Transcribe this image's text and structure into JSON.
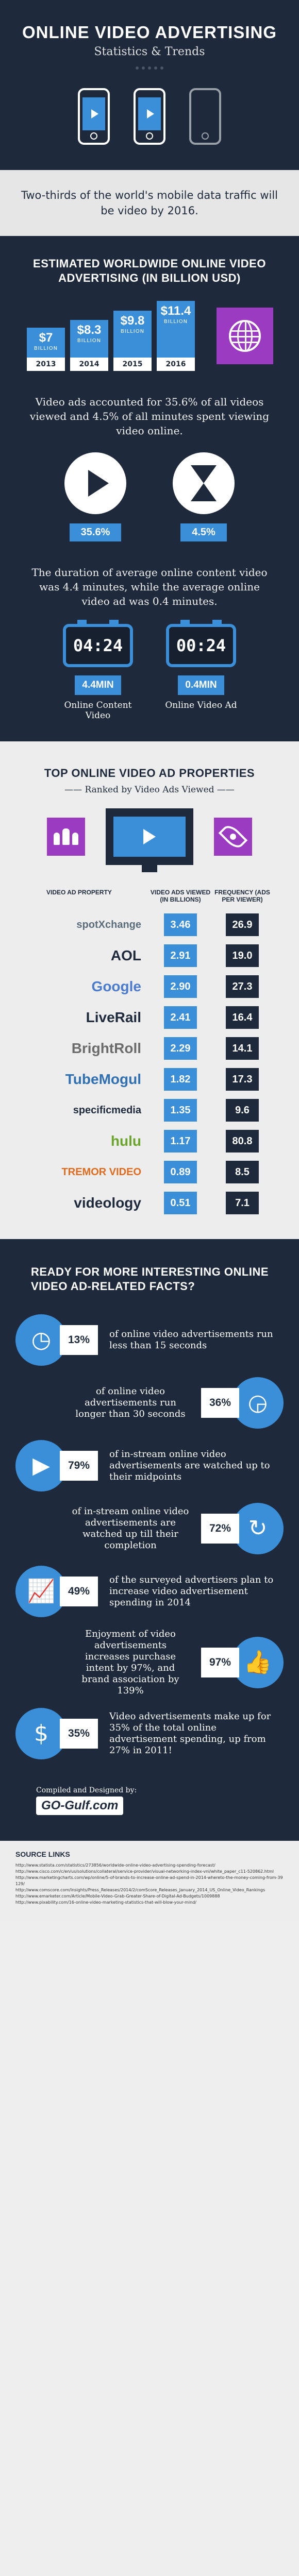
{
  "header": {
    "title": "ONLINE VIDEO ADVERTISING",
    "subtitle": "Statistics & Trends"
  },
  "intro": "Two-thirds of the world's mobile data traffic will be video by 2016.",
  "spending": {
    "heading": "ESTIMATED WORLDWIDE ONLINE VIDEO ADVERTISING (IN BILLION USD)",
    "unit": "BILLION",
    "bars": [
      {
        "value": "$7",
        "numeric": 7,
        "year": "2013"
      },
      {
        "value": "$8.3",
        "numeric": 8.3,
        "year": "2014"
      },
      {
        "value": "$9.8",
        "numeric": 9.8,
        "year": "2015"
      },
      {
        "value": "$11.4",
        "numeric": 11.4,
        "year": "2016"
      }
    ],
    "colors": {
      "bar": "#3b8fd9",
      "globe_box": "#9b3bc2"
    }
  },
  "share": {
    "text": "Video ads accounted for 35.6% of all videos viewed and 4.5% of all minutes spent viewing video online.",
    "left_pct": "35.6%",
    "right_pct": "4.5%",
    "left_icon": "play-icon",
    "right_icon": "hourglass-icon"
  },
  "duration": {
    "text": "The duration of average online content video was 4.4 minutes, while the average online video ad was 0.4 minutes.",
    "items": [
      {
        "clock": "04:24",
        "value": "4.4MIN",
        "label": "Online Content Video"
      },
      {
        "clock": "00:24",
        "value": "0.4MIN",
        "label": "Online Video Ad"
      }
    ]
  },
  "properties": {
    "heading": "TOP ONLINE VIDEO AD PROPERTIES",
    "subheading": "Ranked by Video Ads Viewed",
    "columns": [
      "VIDEO AD PROPERTY",
      "VIDEO ADS VIEWED (IN BILLIONS)",
      "FREQUENCY (ADS PER VIEWER)"
    ],
    "rows": [
      {
        "name": "spotXchange",
        "color": "#5a6b7a",
        "viewed": "3.46",
        "frequency": "26.9"
      },
      {
        "name": "AOL",
        "color": "#1e2a3b",
        "viewed": "2.91",
        "frequency": "19.0"
      },
      {
        "name": "Google",
        "color": "#4a7bd1",
        "viewed": "2.90",
        "frequency": "27.3"
      },
      {
        "name": "LiveRail",
        "color": "#1e2a3b",
        "viewed": "2.41",
        "frequency": "16.4"
      },
      {
        "name": "BrightRoll",
        "color": "#6b6b6b",
        "viewed": "2.29",
        "frequency": "14.1"
      },
      {
        "name": "TubeMogul",
        "color": "#2f6fb3",
        "viewed": "1.82",
        "frequency": "17.3"
      },
      {
        "name": "specificmedia",
        "color": "#1e2a3b",
        "viewed": "1.35",
        "frequency": "9.6"
      },
      {
        "name": "hulu",
        "color": "#6aa52b",
        "viewed": "1.17",
        "frequency": "80.8"
      },
      {
        "name": "TREMOR VIDEO",
        "color": "#e36a1b",
        "viewed": "0.89",
        "frequency": "8.5"
      },
      {
        "name": "videology",
        "color": "#1e2a3b",
        "viewed": "0.51",
        "frequency": "7.1"
      }
    ]
  },
  "facts": {
    "heading": "READY FOR MORE INTERESTING ONLINE VIDEO AD-RELATED FACTS?",
    "items": [
      {
        "side": "l",
        "icon": "clock-icon",
        "glyph": "◷",
        "pct": "13%",
        "text": "of online video advertisements run less than 15 seconds"
      },
      {
        "side": "r",
        "icon": "clock-icon",
        "glyph": "◶",
        "pct": "36%",
        "text": "of online video advertisements run longer than 30 seconds"
      },
      {
        "side": "l",
        "icon": "play-icon",
        "glyph": "▶",
        "pct": "79%",
        "text": "of in-stream online video advertisements are watched up to their midpoints"
      },
      {
        "side": "r",
        "icon": "refresh-icon",
        "glyph": "↻",
        "pct": "72%",
        "text": "of in-stream online video advertisements are watched up till their completion"
      },
      {
        "side": "l",
        "icon": "growth-chart-icon",
        "glyph": "📈",
        "pct": "49%",
        "text": "of the surveyed advertisers plan to increase video advertisement spending in 2014"
      },
      {
        "side": "r",
        "icon": "thumbs-up-icon",
        "glyph": "👍",
        "pct": "97%",
        "text": "Enjoyment of video advertisements increases purchase intent by 97%, and brand association by 139%"
      },
      {
        "side": "l",
        "icon": "dollar-bill-icon",
        "glyph": "$",
        "pct": "35%",
        "text": "Video advertisements make up for 35% of the total online advertisement spending, up from 27% in 2011!"
      }
    ]
  },
  "credit": {
    "by": "Compiled and Designed by:",
    "logo": "GO-Gulf.com"
  },
  "sources": {
    "heading": "SOURCE LINKS",
    "links": [
      "http://www.statista.com/statistics/273856/worldwide-online-video-advertising-spending-forecast/",
      "http://www.cisco.com/c/en/us/solutions/collateral/service-provider/visual-networking-index-vni/white_paper_c11-520862.html",
      "http://www.marketingcharts.com/wp/online/5-of-brands-to-increase-online-ad-spend-in-2014-whereto-the-money-coming-from-39129/",
      "http://www.comscore.com/Insights/Press_Releases/2014/2/comScore_Releases_January_2014_US_Online_Video_Rankings",
      "http://www.emarketer.com/Article/Mobile-Video-Grab-Greater-Share-of-Digital-Ad-Budgets/1009888",
      "http://www.pixability.com/16-online-video-marketing-statistics-that-will-blow-your-mind/"
    ]
  }
}
